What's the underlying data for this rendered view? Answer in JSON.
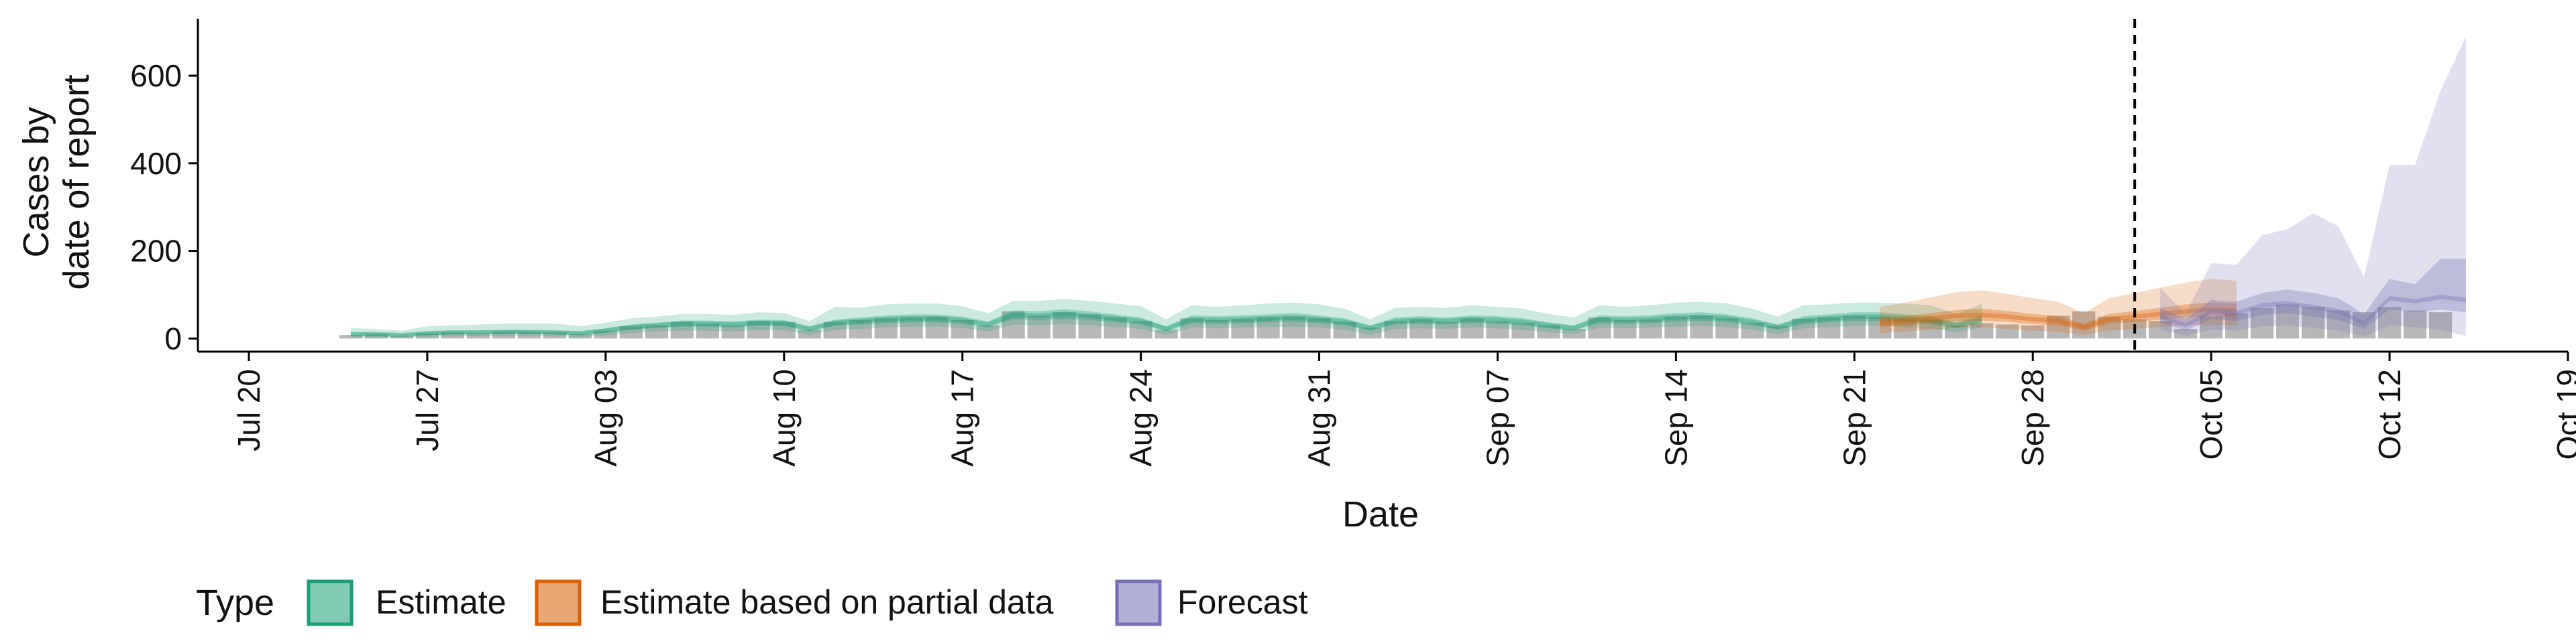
{
  "chart_data": {
    "type": "area",
    "ylabel_lines": [
      "Cases by",
      "date of report"
    ],
    "xlabel": "Date",
    "ylim": [
      -30,
      730
    ],
    "y_ticks": [
      0,
      200,
      400,
      600
    ],
    "x_ticks": [
      {
        "date": "2020-07-20",
        "label": "Jul 20"
      },
      {
        "date": "2020-07-27",
        "label": "Jul 27"
      },
      {
        "date": "2020-08-03",
        "label": "Aug 03"
      },
      {
        "date": "2020-08-10",
        "label": "Aug 10"
      },
      {
        "date": "2020-08-17",
        "label": "Aug 17"
      },
      {
        "date": "2020-08-24",
        "label": "Aug 24"
      },
      {
        "date": "2020-08-31",
        "label": "Aug 31"
      },
      {
        "date": "2020-09-07",
        "label": "Sep 07"
      },
      {
        "date": "2020-09-14",
        "label": "Sep 14"
      },
      {
        "date": "2020-09-21",
        "label": "Sep 21"
      },
      {
        "date": "2020-09-28",
        "label": "Sep 28"
      },
      {
        "date": "2020-10-05",
        "label": "Oct 05"
      },
      {
        "date": "2020-10-12",
        "label": "Oct 12"
      },
      {
        "date": "2020-10-19",
        "label": "Oct 19"
      }
    ],
    "xlim": [
      "2020-07-18",
      "2020-10-19"
    ],
    "vline_date": "2020-10-02",
    "legend": {
      "title": "Type",
      "position": "bottom-left",
      "items": [
        {
          "name": "Estimate",
          "color": "#1b9e77"
        },
        {
          "name": "Estimate based on partial data",
          "color": "#d95f02"
        },
        {
          "name": "Forecast",
          "color": "#7570b3"
        }
      ]
    },
    "observed_color": "#a0a0a0",
    "observed": {
      "start": "2020-07-24",
      "values": [
        8,
        10,
        6,
        12,
        14,
        12,
        16,
        15,
        14,
        10,
        18,
        28,
        30,
        38,
        34,
        30,
        40,
        38,
        20,
        38,
        42,
        46,
        48,
        50,
        42,
        30,
        62,
        52,
        60,
        55,
        48,
        40,
        20,
        46,
        42,
        45,
        48,
        50,
        46,
        38,
        25,
        40,
        44,
        38,
        46,
        40,
        36,
        30,
        22,
        48,
        42,
        44,
        50,
        52,
        46,
        36,
        28,
        45,
        48,
        52,
        50,
        46,
        42,
        30,
        35,
        32,
        30,
        52,
        62,
        50,
        44,
        40,
        22,
        50,
        58,
        70,
        78,
        72,
        64,
        60,
        72,
        64,
        60
      ]
    },
    "series": [
      {
        "name": "Estimate",
        "start": "2020-07-24",
        "median": [
          10,
          10,
          8,
          12,
          14,
          14,
          15,
          15,
          14,
          12,
          18,
          26,
          30,
          34,
          34,
          32,
          36,
          35,
          22,
          36,
          40,
          44,
          46,
          46,
          42,
          32,
          54,
          52,
          56,
          52,
          46,
          40,
          22,
          44,
          42,
          44,
          46,
          48,
          44,
          38,
          24,
          40,
          42,
          40,
          44,
          42,
          38,
          30,
          24,
          44,
          42,
          44,
          48,
          50,
          46,
          38,
          26,
          42,
          46,
          50,
          50,
          46,
          42,
          30,
          44
        ],
        "lower_50": [
          6,
          6,
          5,
          8,
          10,
          10,
          11,
          11,
          10,
          8,
          13,
          20,
          24,
          27,
          27,
          25,
          29,
          28,
          16,
          29,
          32,
          35,
          37,
          37,
          33,
          25,
          44,
          42,
          45,
          42,
          37,
          32,
          16,
          35,
          33,
          35,
          37,
          38,
          35,
          30,
          18,
          32,
          33,
          32,
          35,
          33,
          30,
          23,
          18,
          35,
          33,
          35,
          38,
          40,
          37,
          30,
          20,
          33,
          37,
          40,
          40,
          37,
          33,
          23,
          35
        ],
        "upper_50": [
          14,
          14,
          11,
          16,
          18,
          18,
          19,
          19,
          18,
          16,
          23,
          32,
          36,
          41,
          41,
          39,
          43,
          42,
          28,
          43,
          48,
          53,
          55,
          55,
          50,
          39,
          64,
          62,
          67,
          62,
          55,
          48,
          28,
          53,
          51,
          53,
          55,
          58,
          53,
          46,
          30,
          48,
          51,
          48,
          53,
          51,
          46,
          37,
          30,
          53,
          51,
          53,
          58,
          60,
          55,
          46,
          32,
          51,
          55,
          60,
          60,
          55,
          51,
          37,
          53
        ],
        "lower_90": [
          2,
          2,
          2,
          3,
          5,
          5,
          6,
          6,
          5,
          3,
          7,
          12,
          16,
          18,
          18,
          16,
          20,
          19,
          8,
          20,
          22,
          25,
          27,
          27,
          24,
          16,
          32,
          30,
          33,
          30,
          26,
          22,
          8,
          25,
          23,
          25,
          26,
          27,
          25,
          20,
          8,
          22,
          23,
          22,
          25,
          23,
          20,
          14,
          10,
          25,
          23,
          25,
          27,
          29,
          26,
          20,
          10,
          23,
          26,
          29,
          29,
          26,
          23,
          14,
          25
        ],
        "upper_90": [
          24,
          22,
          18,
          28,
          30,
          32,
          34,
          34,
          34,
          28,
          36,
          46,
          50,
          56,
          56,
          54,
          60,
          58,
          40,
          72,
          70,
          78,
          80,
          80,
          74,
          58,
          86,
          86,
          90,
          86,
          80,
          74,
          44,
          76,
          72,
          76,
          80,
          82,
          78,
          68,
          44,
          70,
          72,
          70,
          76,
          72,
          68,
          56,
          48,
          76,
          72,
          76,
          82,
          84,
          80,
          68,
          50,
          76,
          78,
          82,
          82,
          80,
          76,
          56,
          80
        ]
      },
      {
        "name": "Estimate based on partial data",
        "start": "2020-09-22",
        "median": [
          36,
          40,
          46,
          52,
          54,
          50,
          44,
          40,
          26,
          44,
          50,
          56,
          62,
          66,
          64
        ],
        "lower_50": [
          26,
          30,
          35,
          40,
          41,
          38,
          33,
          30,
          18,
          34,
          38,
          43,
          48,
          50,
          48
        ],
        "upper_50": [
          46,
          51,
          58,
          65,
          68,
          63,
          56,
          51,
          34,
          56,
          63,
          70,
          78,
          82,
          80
        ],
        "lower_90": [
          12,
          16,
          20,
          24,
          25,
          22,
          18,
          16,
          8,
          18,
          22,
          26,
          30,
          32,
          30
        ],
        "upper_90": [
          72,
          82,
          94,
          106,
          110,
          102,
          92,
          84,
          58,
          92,
          104,
          116,
          128,
          136,
          132
        ]
      },
      {
        "name": "Forecast",
        "start": "2020-10-03",
        "median": [
          50,
          30,
          62,
          58,
          76,
          80,
          72,
          62,
          35,
          92,
          85,
          95,
          88
        ],
        "lower_50": [
          36,
          18,
          44,
          40,
          54,
          58,
          50,
          42,
          22,
          66,
          60,
          66,
          60
        ],
        "upper_50": [
          70,
          44,
          88,
          84,
          104,
          112,
          104,
          92,
          55,
          136,
          124,
          182,
          182
        ],
        "lower_90": [
          20,
          6,
          20,
          18,
          28,
          30,
          24,
          18,
          5,
          30,
          26,
          20,
          6
        ],
        "upper_90": [
          116,
          56,
          172,
          168,
          236,
          250,
          286,
          256,
          140,
          396,
          396,
          566,
          690
        ]
      }
    ]
  }
}
